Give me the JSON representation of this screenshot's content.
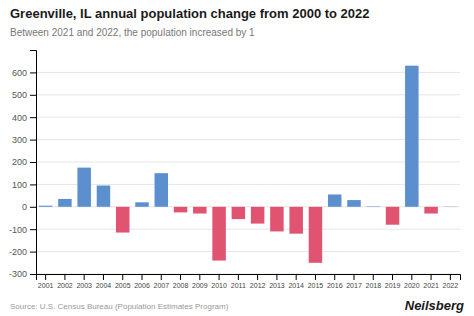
{
  "chart_data": {
    "type": "bar",
    "title": "Greenville, IL annual population change from 2000 to 2022",
    "subtitle": "Between 2021 and 2022, the population increased by 1",
    "source": "Source: U.S. Census Bureau (Population Estimates Program)",
    "brand": "Neilsberg",
    "categories": [
      "2001",
      "2002",
      "2003",
      "2004",
      "2005",
      "2006",
      "2007",
      "2008",
      "2009",
      "2010",
      "2011",
      "2012",
      "2013",
      "2014",
      "2015",
      "2016",
      "2017",
      "2018",
      "2019",
      "2020",
      "2021",
      "2022"
    ],
    "values": [
      5,
      35,
      175,
      95,
      -115,
      20,
      150,
      -25,
      -30,
      -240,
      -55,
      -75,
      -110,
      -120,
      -250,
      55,
      30,
      2,
      -80,
      630,
      -30,
      1
    ],
    "colors": [
      "#5b8fce",
      "#5b8fce",
      "#5b8fce",
      "#5b8fce",
      "#e05472",
      "#5b8fce",
      "#5b8fce",
      "#e05472",
      "#e05472",
      "#e05472",
      "#e05472",
      "#e05472",
      "#e05472",
      "#e05472",
      "#e05472",
      "#5b8fce",
      "#5b8fce",
      "#5b8fce",
      "#e05472",
      "#5b8fce",
      "#e05472",
      "#5b8fce"
    ],
    "ylim": [
      -300,
      700
    ],
    "yticks": [
      -300,
      -200,
      -100,
      0,
      100,
      200,
      300,
      400,
      500,
      600
    ],
    "grid": true
  }
}
